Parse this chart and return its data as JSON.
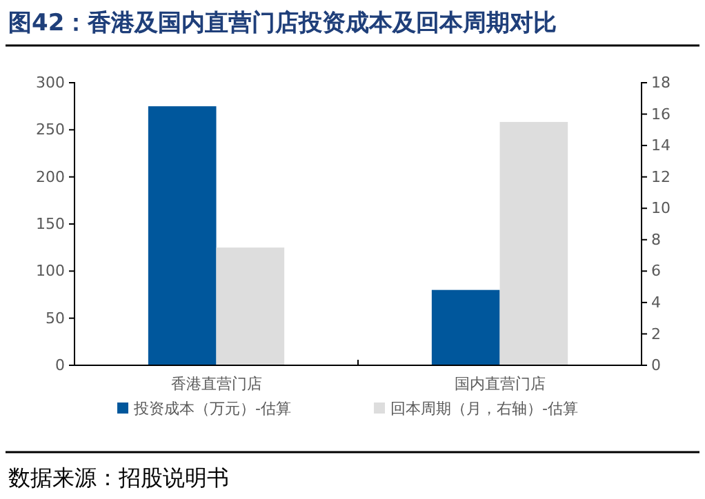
{
  "chart_data": {
    "type": "bar",
    "title": "图42：香港及国内直营门店投资成本及回本周期对比",
    "categories": [
      "香港直营门店",
      "国内直营门店"
    ],
    "series": [
      {
        "name": "投资成本（万元）-估算",
        "color": "#00579c",
        "values": [
          275,
          80
        ]
      },
      {
        "name": "回本周期（月，右轴）-估算",
        "color": "#dddddd",
        "values": [
          7.5,
          15.5
        ],
        "axis": "y2"
      }
    ],
    "ylim": [
      0,
      300
    ],
    "yticks": [
      0,
      50,
      100,
      150,
      200,
      250,
      300
    ],
    "y2lim": [
      0,
      18
    ],
    "y2ticks": [
      0,
      2,
      4,
      6,
      8,
      10,
      12,
      14,
      16,
      18
    ],
    "legend": "bottom",
    "grid": false,
    "annotations": [
      "数据来源：招股说明书"
    ]
  }
}
